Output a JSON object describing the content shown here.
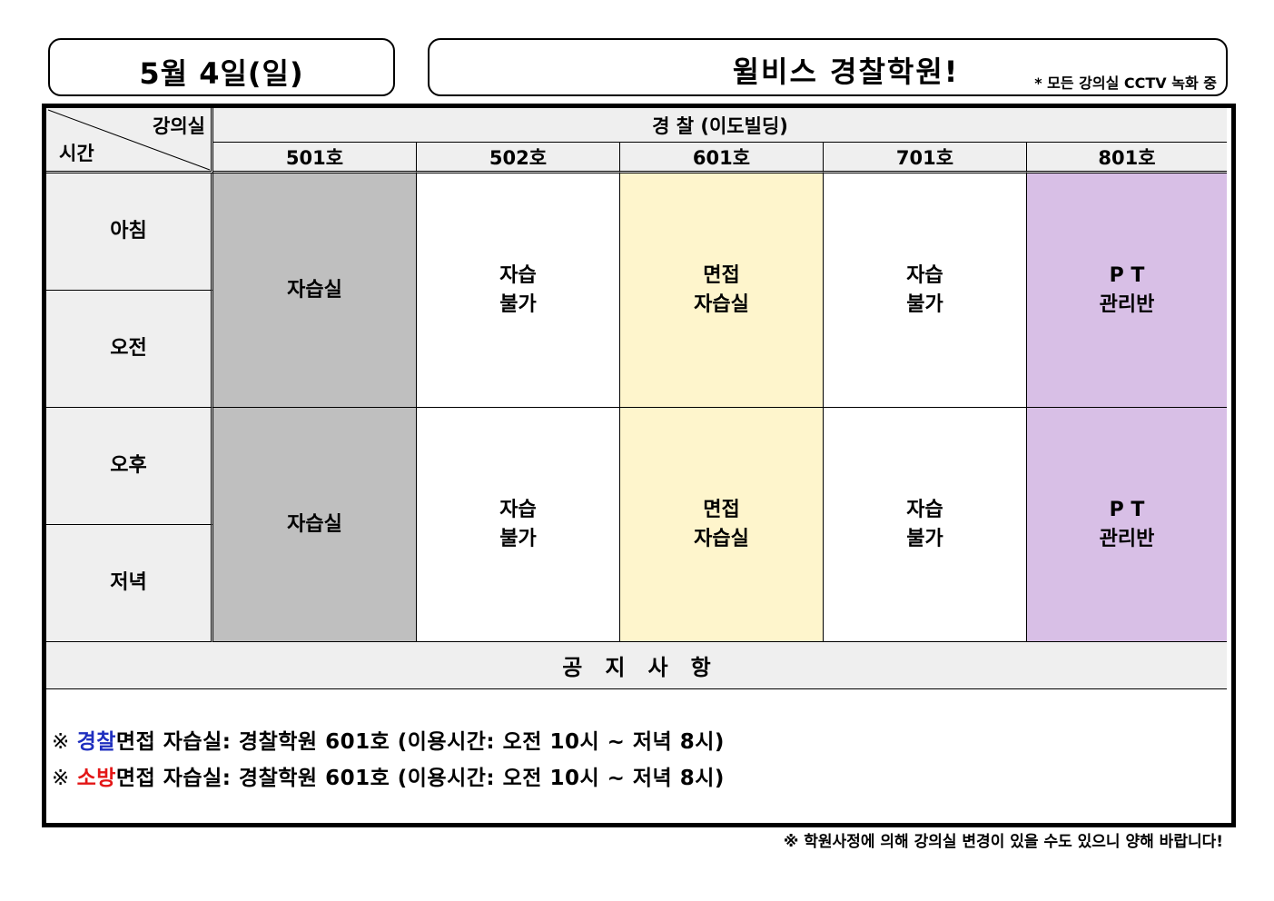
{
  "header": {
    "date": "5월  4일(일)",
    "title": "윌비스  경찰학원!",
    "cctv_note": "* 모든 강의실 CCTV 녹화 중"
  },
  "table": {
    "corner_top": "강의실",
    "corner_bottom": "시간",
    "building": "경   찰 (이도빌딩)",
    "rooms": [
      "501호",
      "502호",
      "601호",
      "701호",
      "801호"
    ],
    "times": [
      "아침",
      "오전",
      "오후",
      "저녁"
    ],
    "blocks": [
      {
        "cells": [
          {
            "line1": "자습실",
            "line2": "",
            "color": "#bfbfbf"
          },
          {
            "line1": "자습",
            "line2": "불가",
            "color": "#ffffff"
          },
          {
            "line1": "면접",
            "line2": "자습실",
            "color": "#fef5cc"
          },
          {
            "line1": "자습",
            "line2": "불가",
            "color": "#ffffff"
          },
          {
            "line1": "P T",
            "line2": "관리반",
            "color": "#d8bfe6"
          }
        ]
      },
      {
        "cells": [
          {
            "line1": "자습실",
            "line2": "",
            "color": "#bfbfbf"
          },
          {
            "line1": "자습",
            "line2": "불가",
            "color": "#ffffff"
          },
          {
            "line1": "면접",
            "line2": "자습실",
            "color": "#fef5cc"
          },
          {
            "line1": "자습",
            "line2": "불가",
            "color": "#ffffff"
          },
          {
            "line1": "P T",
            "line2": "관리반",
            "color": "#d8bfe6"
          }
        ]
      }
    ]
  },
  "notice": {
    "heading": "공   지   사   항",
    "lines": [
      {
        "mark": "※ ",
        "highlight": "경찰",
        "highlight_color": "#1f2fbf",
        "text": "면접 자습실: 경찰학원 601호 (이용시간: 오전 10시 ~ 저녁 8시)"
      },
      {
        "mark": "※ ",
        "highlight": "소방",
        "highlight_color": "#e31616",
        "text": "면접 자습실: 경찰학원 601호 (이용시간: 오전 10시 ~ 저녁 8시)"
      }
    ]
  },
  "footer": "※ 학원사정에 의해 강의실 변경이 있을 수도 있으니 양해 바랍니다!"
}
